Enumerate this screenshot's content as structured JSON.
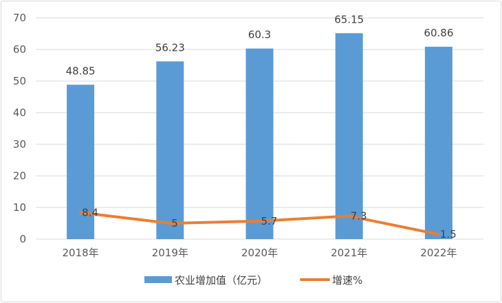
{
  "chart_data": {
    "type": "bar",
    "categories": [
      "2018年",
      "2019年",
      "2020年",
      "2021年",
      "2022年"
    ],
    "series": [
      {
        "name": "农业增加值（亿元）",
        "type": "bar",
        "values": [
          48.85,
          56.23,
          60.3,
          65.15,
          60.86
        ],
        "labels": [
          "48.85",
          "56.23",
          "60.3",
          "65.15",
          "60.86"
        ],
        "color": "#5b9bd5"
      },
      {
        "name": "增速%",
        "type": "line",
        "values": [
          8.4,
          5,
          5.7,
          7.3,
          1.5
        ],
        "labels": [
          "8.4",
          "5",
          "5.7",
          "7.3",
          "1.5"
        ],
        "color": "#ed7d31"
      }
    ],
    "ylim": [
      0,
      70
    ],
    "yticks": [
      "0",
      "10",
      "20",
      "30",
      "40",
      "50",
      "60",
      "70"
    ],
    "grid": true,
    "legend_position": "bottom"
  }
}
